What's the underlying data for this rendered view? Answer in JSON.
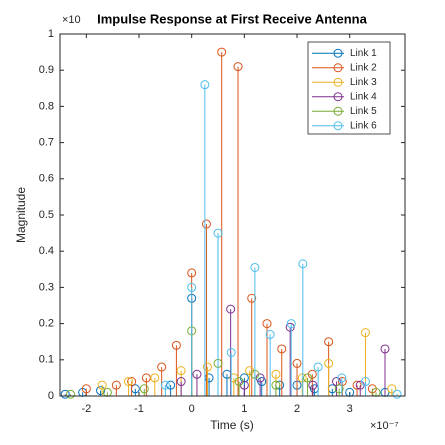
{
  "chart_data": {
    "type": "stem",
    "title": "Impulse Response at First Receive Antenna",
    "x_label": "Time (s)",
    "y_label": "Magnitude",
    "x_multiplier": "×10⁻⁷",
    "y_multiplier": "×10",
    "xlim": [
      -2.5,
      4.05
    ],
    "ylim": [
      0,
      1
    ],
    "xticks": [
      -2,
      -1,
      0,
      1,
      2,
      3
    ],
    "yticks": [
      0,
      0.1,
      0.2,
      0.3,
      0.4,
      0.5,
      0.6,
      0.7,
      0.8,
      0.9,
      1
    ],
    "legend_position": "upper right",
    "series": [
      {
        "name": "Link 1",
        "color": "#0072BD",
        "x": [
          -2.4,
          -2.07,
          -1.73,
          -1.07,
          -0.4,
          0,
          0.33,
          0.67,
          1.0,
          1.33,
          1.67,
          2.0,
          2.33,
          2.67,
          3.0,
          3.67
        ],
        "values": [
          0.005,
          0.01,
          0.015,
          0.02,
          0.03,
          0.27,
          0.05,
          0.06,
          0.05,
          0.04,
          0.03,
          0.03,
          0.02,
          0.02,
          0.01,
          0.01
        ]
      },
      {
        "name": "Link 2",
        "color": "#D95319",
        "x": [
          -2.0,
          -1.43,
          -1.14,
          -0.86,
          -0.57,
          -0.29,
          0,
          0.28,
          0.57,
          0.88,
          1.14,
          1.43,
          1.71,
          2.0,
          2.29,
          2.6,
          2.86,
          3.14,
          3.43
        ],
        "values": [
          0.02,
          0.03,
          0.04,
          0.05,
          0.08,
          0.14,
          0.34,
          0.475,
          0.95,
          0.91,
          0.27,
          0.2,
          0.13,
          0.09,
          0.06,
          0.15,
          0.04,
          0.03,
          0.02
        ]
      },
      {
        "name": "Link 3",
        "color": "#EDB120",
        "x": [
          -1.7,
          -1.2,
          -0.7,
          -0.2,
          0.3,
          0.8,
          1.1,
          1.6,
          2.1,
          2.6,
          3.3,
          3.8
        ],
        "values": [
          0.03,
          0.04,
          0.05,
          0.07,
          0.08,
          0.05,
          0.07,
          0.06,
          0.05,
          0.09,
          0.175,
          0.02
        ]
      },
      {
        "name": "Link 4",
        "color": "#7E2F8E",
        "x": [
          -0.2,
          0.1,
          0.74,
          1.0,
          1.3,
          1.87,
          2.3,
          2.75,
          3.2,
          3.67
        ],
        "values": [
          0.04,
          0.06,
          0.24,
          0.03,
          0.05,
          0.19,
          0.03,
          0.04,
          0.03,
          0.13
        ]
      },
      {
        "name": "Link 5",
        "color": "#77AC30",
        "x": [
          -2.3,
          -1.6,
          -0.9,
          0,
          0.5,
          0.9,
          1.2,
          1.6,
          2.2,
          2.8,
          3.5
        ],
        "values": [
          0.005,
          0.01,
          0.02,
          0.18,
          0.09,
          0.04,
          0.06,
          0.03,
          0.05,
          0.02,
          0.01
        ]
      },
      {
        "name": "Link 6",
        "color": "#4DBEEE",
        "x": [
          -0.5,
          0,
          0.25,
          0.5,
          0.75,
          1.2,
          1.49,
          1.89,
          2.11,
          2.4,
          2.85,
          3.3,
          3.9
        ],
        "values": [
          0.03,
          0.3,
          0.86,
          0.45,
          0.12,
          0.355,
          0.17,
          0.2,
          0.365,
          0.08,
          0.05,
          0.04,
          0.005
        ]
      }
    ]
  }
}
